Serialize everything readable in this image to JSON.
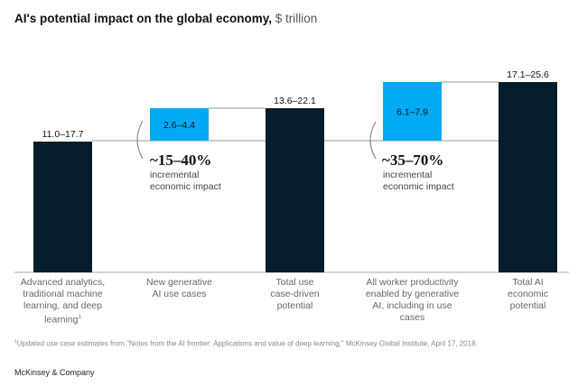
{
  "header": {
    "title": "AI's potential impact on the global economy,",
    "unit": " $ trillion"
  },
  "chart_data": {
    "type": "bar",
    "subtype": "waterfall",
    "title": "AI's potential impact on the global economy, $ trillion",
    "categories": [
      "Advanced analytics, traditional machine learning, and deep learning",
      "New generative AI use cases",
      "Total use case-driven potential",
      "All worker productivity enabled by generative AI, including in use cases",
      "Total AI economic potential"
    ],
    "category_lines": [
      [
        "Advanced analytics,",
        "traditional machine",
        "learning, and deep",
        "learning"
      ],
      [
        "New generative",
        "AI use cases"
      ],
      [
        "Total use",
        "case-driven",
        "potential"
      ],
      [
        "All worker productivity",
        "enabled by generative",
        "AI, including in use",
        "cases"
      ],
      [
        "Total AI",
        "economic",
        "potential"
      ]
    ],
    "footnote_marker": "1",
    "labels": [
      "11.0–17.7",
      "2.6–4.4",
      "13.6–22.1",
      "6.1–7.9",
      "17.1–25.6"
    ],
    "low": [
      11.0,
      2.6,
      13.6,
      6.1,
      17.1
    ],
    "high": [
      17.7,
      4.4,
      22.1,
      7.9,
      25.6
    ],
    "kind": [
      "total",
      "increment",
      "total",
      "increment",
      "total"
    ],
    "colors": {
      "total": "#051c2c",
      "increment": "#00a9f4",
      "connector": "#999999"
    },
    "annotations": [
      {
        "value": "~15–40%",
        "text": [
          "incremental",
          "economic impact"
        ]
      },
      {
        "value": "~35–70%",
        "text": [
          "incremental",
          "economic impact"
        ]
      }
    ]
  },
  "footnote": "Updated use case estimates from \"Notes from the AI frontier: Applications and value of deep learning,\" McKinsey Global Institute, April 17, 2018.",
  "brand": "McKinsey & Company"
}
